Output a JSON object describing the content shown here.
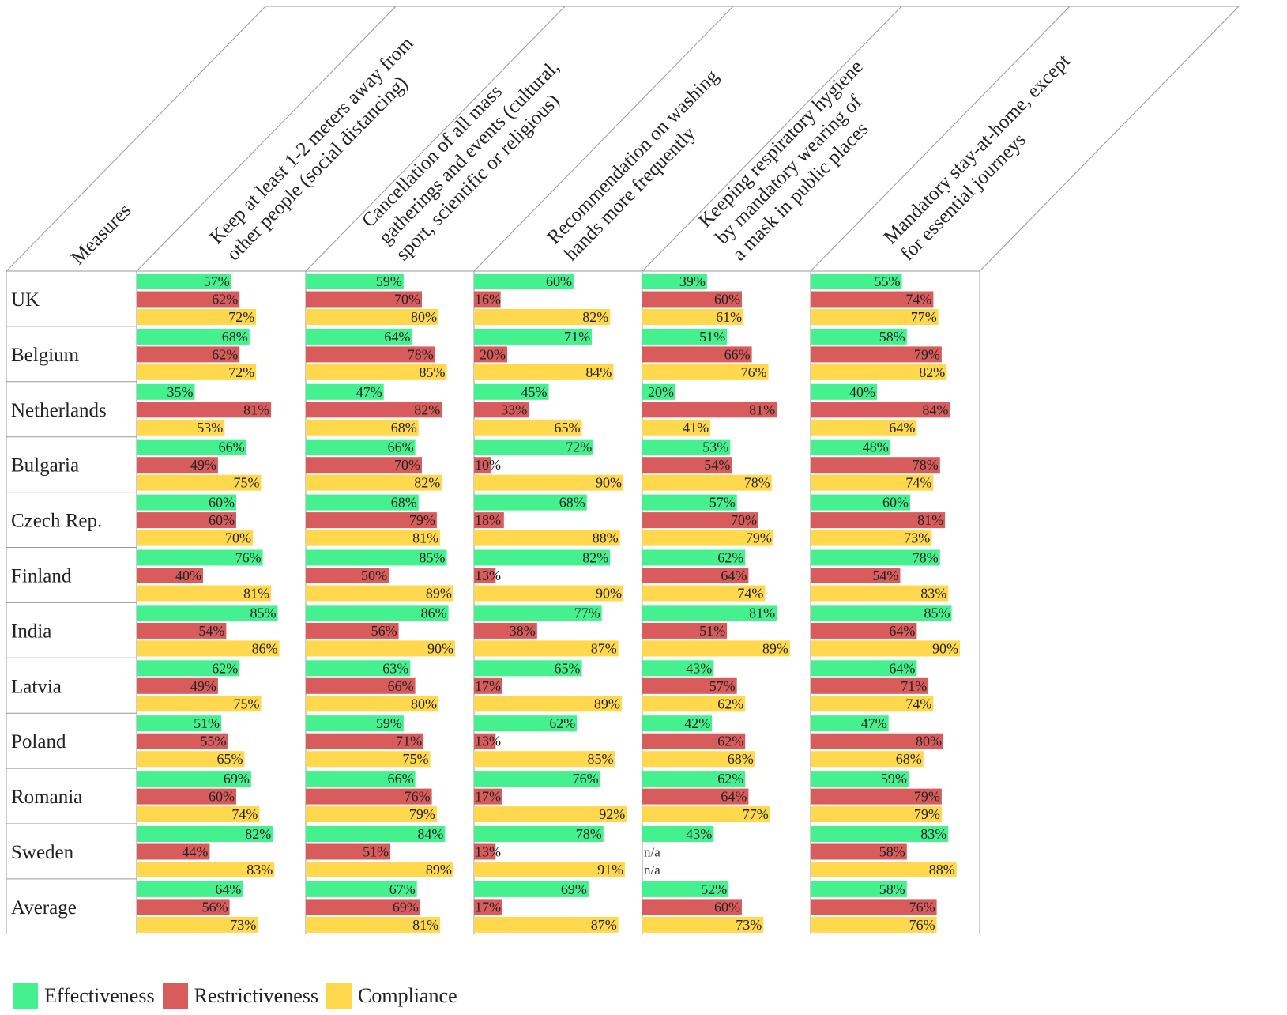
{
  "chart_data": {
    "type": "bar",
    "orientation": "horizontal",
    "title": "",
    "corner_label": "Measures",
    "measures": [
      [
        "Keep at least 1-2 meters away from",
        "other people (social distancing)"
      ],
      [
        "Cancellation of all mass",
        "gatherings and events (cultural,",
        "sport, scientific or religious)"
      ],
      [
        "Recommendation on washing",
        "hands more frequently"
      ],
      [
        "Keeping respiratory hygiene",
        "by mandatory wearing of",
        "a mask in public places"
      ],
      [
        "Mandatory stay-at-home, except",
        "for essential journeys"
      ]
    ],
    "countries": [
      "UK",
      "Belgium",
      "Netherlands",
      "Bulgaria",
      "Czech Rep.",
      "Finland",
      "India",
      "Latvia",
      "Poland",
      "Romania",
      "Sweden",
      "Average"
    ],
    "series": [
      {
        "name": "Effectiveness",
        "color": "#45F08E",
        "values": [
          [
            57,
            59,
            60,
            39,
            55
          ],
          [
            68,
            64,
            71,
            51,
            58
          ],
          [
            35,
            47,
            45,
            20,
            40
          ],
          [
            66,
            66,
            72,
            53,
            48
          ],
          [
            60,
            68,
            68,
            57,
            60
          ],
          [
            76,
            85,
            82,
            62,
            78
          ],
          [
            85,
            86,
            77,
            81,
            85
          ],
          [
            62,
            63,
            65,
            43,
            64
          ],
          [
            51,
            59,
            62,
            42,
            47
          ],
          [
            69,
            66,
            76,
            62,
            59
          ],
          [
            82,
            84,
            78,
            43,
            83
          ],
          [
            64,
            67,
            69,
            52,
            58
          ]
        ]
      },
      {
        "name": "Restrictiveness",
        "color": "#D95C5C",
        "values": [
          [
            62,
            70,
            16,
            60,
            74
          ],
          [
            62,
            78,
            20,
            66,
            79
          ],
          [
            81,
            82,
            33,
            81,
            84
          ],
          [
            49,
            70,
            10,
            54,
            78
          ],
          [
            60,
            79,
            18,
            70,
            81
          ],
          [
            40,
            50,
            13,
            64,
            54
          ],
          [
            54,
            56,
            38,
            51,
            64
          ],
          [
            49,
            66,
            17,
            57,
            71
          ],
          [
            55,
            71,
            13,
            62,
            80
          ],
          [
            60,
            76,
            17,
            64,
            79
          ],
          [
            44,
            51,
            13,
            null,
            58
          ],
          [
            56,
            69,
            17,
            60,
            76
          ]
        ]
      },
      {
        "name": "Compliance",
        "color": "#FFD84D",
        "values": [
          [
            72,
            80,
            82,
            61,
            77
          ],
          [
            72,
            85,
            84,
            76,
            82
          ],
          [
            53,
            68,
            65,
            41,
            64
          ],
          [
            75,
            82,
            90,
            78,
            74
          ],
          [
            70,
            81,
            88,
            79,
            73
          ],
          [
            81,
            89,
            90,
            74,
            83
          ],
          [
            86,
            90,
            87,
            89,
            90
          ],
          [
            75,
            80,
            89,
            62,
            74
          ],
          [
            65,
            75,
            85,
            68,
            68
          ],
          [
            74,
            79,
            92,
            77,
            79
          ],
          [
            83,
            89,
            91,
            null,
            88
          ],
          [
            73,
            81,
            87,
            73,
            76
          ]
        ]
      }
    ],
    "missing_label": "n/a",
    "value_suffix": "%",
    "xlim": [
      0,
      100
    ],
    "legend": [
      "Effectiveness",
      "Restrictiveness",
      "Compliance"
    ]
  }
}
